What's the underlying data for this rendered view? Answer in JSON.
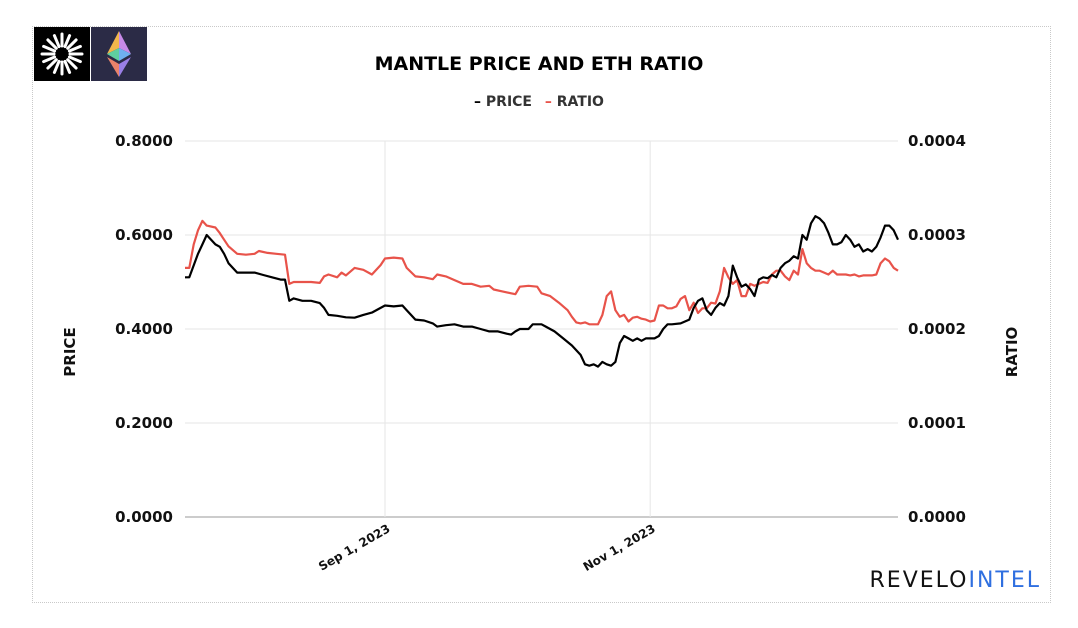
{
  "header": {
    "title": "MANTLE PRICE AND ETH RATIO",
    "logos": [
      "mantle-logo",
      "ethereum-logo"
    ]
  },
  "brand": {
    "part1": "REVELO",
    "part2": "INTEL",
    "color_part2": "#2f6fe0"
  },
  "colors": {
    "price": "#000000",
    "ratio": "#e8534a",
    "grid": "#e6e6e6"
  },
  "chart_data": {
    "type": "line",
    "title": "MANTLE PRICE AND ETH RATIO",
    "legend": {
      "position": "top-center",
      "entries": [
        "PRICE",
        "RATIO"
      ]
    },
    "ylabel_left": "PRICE",
    "ylabel_right": "RATIO",
    "ylim_left": [
      0,
      0.8
    ],
    "ylim_right": [
      0,
      0.0004
    ],
    "left_ticks": [
      "0.0000",
      "0.2000",
      "0.4000",
      "0.6000",
      "0.8000"
    ],
    "right_ticks": [
      "0.0000",
      "0.0001",
      "0.0002",
      "0.0003",
      "0.0004"
    ],
    "x_ticks": [
      "Sep 1, 2023",
      "Nov 1, 2023"
    ],
    "xlim": [
      "2023-07-17",
      "2023-12-28"
    ],
    "grid": true,
    "series": [
      {
        "name": "PRICE",
        "axis": "left",
        "points": [
          [
            "2023-07-17",
            0.51
          ],
          [
            "2023-07-18",
            0.51
          ],
          [
            "2023-07-20",
            0.56
          ],
          [
            "2023-07-21",
            0.58
          ],
          [
            "2023-07-22",
            0.6
          ],
          [
            "2023-07-24",
            0.58
          ],
          [
            "2023-07-25",
            0.575
          ],
          [
            "2023-07-26",
            0.56
          ],
          [
            "2023-07-27",
            0.54
          ],
          [
            "2023-07-28",
            0.53
          ],
          [
            "2023-07-29",
            0.52
          ],
          [
            "2023-07-31",
            0.52
          ],
          [
            "2023-08-02",
            0.52
          ],
          [
            "2023-08-04",
            0.515
          ],
          [
            "2023-08-06",
            0.51
          ],
          [
            "2023-08-08",
            0.505
          ],
          [
            "2023-08-09",
            0.505
          ],
          [
            "2023-08-10",
            0.46
          ],
          [
            "2023-08-11",
            0.465
          ],
          [
            "2023-08-13",
            0.46
          ],
          [
            "2023-08-15",
            0.46
          ],
          [
            "2023-08-17",
            0.455
          ],
          [
            "2023-08-18",
            0.445
          ],
          [
            "2023-08-19",
            0.43
          ],
          [
            "2023-08-21",
            0.428
          ],
          [
            "2023-08-23",
            0.425
          ],
          [
            "2023-08-25",
            0.424
          ],
          [
            "2023-08-27",
            0.43
          ],
          [
            "2023-08-29",
            0.435
          ],
          [
            "2023-08-31",
            0.445
          ],
          [
            "2023-09-01",
            0.45
          ],
          [
            "2023-09-03",
            0.448
          ],
          [
            "2023-09-05",
            0.45
          ],
          [
            "2023-09-06",
            0.44
          ],
          [
            "2023-09-08",
            0.42
          ],
          [
            "2023-09-10",
            0.418
          ],
          [
            "2023-09-12",
            0.412
          ],
          [
            "2023-09-13",
            0.405
          ],
          [
            "2023-09-15",
            0.408
          ],
          [
            "2023-09-17",
            0.41
          ],
          [
            "2023-09-19",
            0.405
          ],
          [
            "2023-09-21",
            0.405
          ],
          [
            "2023-09-23",
            0.4
          ],
          [
            "2023-09-25",
            0.395
          ],
          [
            "2023-09-27",
            0.395
          ],
          [
            "2023-09-29",
            0.39
          ],
          [
            "2023-09-30",
            0.388
          ],
          [
            "2023-10-01",
            0.395
          ],
          [
            "2023-10-02",
            0.4
          ],
          [
            "2023-10-04",
            0.4
          ],
          [
            "2023-10-05",
            0.41
          ],
          [
            "2023-10-07",
            0.41
          ],
          [
            "2023-10-08",
            0.405
          ],
          [
            "2023-10-10",
            0.395
          ],
          [
            "2023-10-12",
            0.38
          ],
          [
            "2023-10-14",
            0.365
          ],
          [
            "2023-10-16",
            0.345
          ],
          [
            "2023-10-17",
            0.325
          ],
          [
            "2023-10-18",
            0.322
          ],
          [
            "2023-10-19",
            0.325
          ],
          [
            "2023-10-20",
            0.32
          ],
          [
            "2023-10-21",
            0.33
          ],
          [
            "2023-10-22",
            0.325
          ],
          [
            "2023-10-23",
            0.322
          ],
          [
            "2023-10-24",
            0.33
          ],
          [
            "2023-10-25",
            0.37
          ],
          [
            "2023-10-26",
            0.385
          ],
          [
            "2023-10-27",
            0.38
          ],
          [
            "2023-10-28",
            0.375
          ],
          [
            "2023-10-29",
            0.38
          ],
          [
            "2023-10-30",
            0.375
          ],
          [
            "2023-10-31",
            0.38
          ],
          [
            "2023-11-02",
            0.38
          ],
          [
            "2023-11-03",
            0.385
          ],
          [
            "2023-11-04",
            0.4
          ],
          [
            "2023-11-05",
            0.41
          ],
          [
            "2023-11-06",
            0.41
          ],
          [
            "2023-11-08",
            0.412
          ],
          [
            "2023-11-10",
            0.42
          ],
          [
            "2023-11-11",
            0.445
          ],
          [
            "2023-11-12",
            0.46
          ],
          [
            "2023-11-13",
            0.465
          ],
          [
            "2023-11-14",
            0.44
          ],
          [
            "2023-11-15",
            0.43
          ],
          [
            "2023-11-16",
            0.445
          ],
          [
            "2023-11-17",
            0.455
          ],
          [
            "2023-11-18",
            0.45
          ],
          [
            "2023-11-19",
            0.47
          ],
          [
            "2023-11-20",
            0.535
          ],
          [
            "2023-11-21",
            0.51
          ],
          [
            "2023-11-22",
            0.49
          ],
          [
            "2023-11-23",
            0.495
          ],
          [
            "2023-11-24",
            0.485
          ],
          [
            "2023-11-25",
            0.47
          ],
          [
            "2023-11-26",
            0.505
          ],
          [
            "2023-11-27",
            0.51
          ],
          [
            "2023-11-28",
            0.508
          ],
          [
            "2023-11-29",
            0.515
          ],
          [
            "2023-11-30",
            0.51
          ],
          [
            "2023-12-01",
            0.53
          ],
          [
            "2023-12-02",
            0.54
          ],
          [
            "2023-12-03",
            0.545
          ],
          [
            "2023-12-04",
            0.555
          ],
          [
            "2023-12-05",
            0.55
          ],
          [
            "2023-12-06",
            0.6
          ],
          [
            "2023-12-07",
            0.59
          ],
          [
            "2023-12-08",
            0.625
          ],
          [
            "2023-12-09",
            0.64
          ],
          [
            "2023-12-10",
            0.635
          ],
          [
            "2023-12-11",
            0.625
          ],
          [
            "2023-12-12",
            0.605
          ],
          [
            "2023-12-13",
            0.58
          ],
          [
            "2023-12-14",
            0.58
          ],
          [
            "2023-12-15",
            0.585
          ],
          [
            "2023-12-16",
            0.6
          ],
          [
            "2023-12-17",
            0.59
          ],
          [
            "2023-12-18",
            0.575
          ],
          [
            "2023-12-19",
            0.58
          ],
          [
            "2023-12-20",
            0.565
          ],
          [
            "2023-12-21",
            0.57
          ],
          [
            "2023-12-22",
            0.565
          ],
          [
            "2023-12-23",
            0.575
          ],
          [
            "2023-12-24",
            0.595
          ],
          [
            "2023-12-25",
            0.62
          ],
          [
            "2023-12-26",
            0.62
          ],
          [
            "2023-12-27",
            0.61
          ],
          [
            "2023-12-28",
            0.59
          ]
        ]
      },
      {
        "name": "RATIO",
        "axis": "right",
        "points": [
          [
            "2023-07-17",
            0.000265
          ],
          [
            "2023-07-18",
            0.000265
          ],
          [
            "2023-07-19",
            0.00029
          ],
          [
            "2023-07-20",
            0.000305
          ],
          [
            "2023-07-21",
            0.000315
          ],
          [
            "2023-07-22",
            0.00031
          ],
          [
            "2023-07-24",
            0.000308
          ],
          [
            "2023-07-25",
            0.000302
          ],
          [
            "2023-07-26",
            0.000295
          ],
          [
            "2023-07-27",
            0.000288
          ],
          [
            "2023-07-29",
            0.00028
          ],
          [
            "2023-07-31",
            0.000279
          ],
          [
            "2023-08-02",
            0.00028
          ],
          [
            "2023-08-03",
            0.000283
          ],
          [
            "2023-08-05",
            0.000281
          ],
          [
            "2023-08-07",
            0.00028
          ],
          [
            "2023-08-09",
            0.000279
          ],
          [
            "2023-08-10",
            0.000248
          ],
          [
            "2023-08-11",
            0.00025
          ],
          [
            "2023-08-13",
            0.00025
          ],
          [
            "2023-08-15",
            0.00025
          ],
          [
            "2023-08-17",
            0.000249
          ],
          [
            "2023-08-18",
            0.000256
          ],
          [
            "2023-08-19",
            0.000258
          ],
          [
            "2023-08-21",
            0.000255
          ],
          [
            "2023-08-22",
            0.00026
          ],
          [
            "2023-08-23",
            0.000257
          ],
          [
            "2023-08-25",
            0.000265
          ],
          [
            "2023-08-27",
            0.000263
          ],
          [
            "2023-08-29",
            0.000258
          ],
          [
            "2023-08-31",
            0.000268
          ],
          [
            "2023-09-01",
            0.000275
          ],
          [
            "2023-09-03",
            0.000276
          ],
          [
            "2023-09-05",
            0.000275
          ],
          [
            "2023-09-06",
            0.000265
          ],
          [
            "2023-09-08",
            0.000256
          ],
          [
            "2023-09-10",
            0.000255
          ],
          [
            "2023-09-12",
            0.000253
          ],
          [
            "2023-09-13",
            0.000258
          ],
          [
            "2023-09-15",
            0.000256
          ],
          [
            "2023-09-17",
            0.000252
          ],
          [
            "2023-09-19",
            0.000248
          ],
          [
            "2023-09-21",
            0.000248
          ],
          [
            "2023-09-23",
            0.000245
          ],
          [
            "2023-09-25",
            0.000246
          ],
          [
            "2023-09-26",
            0.000242
          ],
          [
            "2023-09-28",
            0.00024
          ],
          [
            "2023-09-30",
            0.000238
          ],
          [
            "2023-10-01",
            0.000237
          ],
          [
            "2023-10-02",
            0.000245
          ],
          [
            "2023-10-04",
            0.000246
          ],
          [
            "2023-10-06",
            0.000245
          ],
          [
            "2023-10-07",
            0.000238
          ],
          [
            "2023-10-09",
            0.000235
          ],
          [
            "2023-10-11",
            0.000228
          ],
          [
            "2023-10-13",
            0.00022
          ],
          [
            "2023-10-14",
            0.000213
          ],
          [
            "2023-10-15",
            0.000207
          ],
          [
            "2023-10-16",
            0.000206
          ],
          [
            "2023-10-17",
            0.000207
          ],
          [
            "2023-10-18",
            0.000205
          ],
          [
            "2023-10-20",
            0.000205
          ],
          [
            "2023-10-21",
            0.000215
          ],
          [
            "2023-10-22",
            0.000235
          ],
          [
            "2023-10-23",
            0.00024
          ],
          [
            "2023-10-24",
            0.00022
          ],
          [
            "2023-10-25",
            0.000213
          ],
          [
            "2023-10-26",
            0.000215
          ],
          [
            "2023-10-27",
            0.000208
          ],
          [
            "2023-10-28",
            0.000212
          ],
          [
            "2023-10-29",
            0.000213
          ],
          [
            "2023-10-30",
            0.000211
          ],
          [
            "2023-10-31",
            0.00021
          ],
          [
            "2023-11-01",
            0.000208
          ],
          [
            "2023-11-02",
            0.000209
          ],
          [
            "2023-11-03",
            0.000225
          ],
          [
            "2023-11-04",
            0.000225
          ],
          [
            "2023-11-05",
            0.000222
          ],
          [
            "2023-11-06",
            0.000222
          ],
          [
            "2023-11-07",
            0.000224
          ],
          [
            "2023-11-08",
            0.000232
          ],
          [
            "2023-11-09",
            0.000235
          ],
          [
            "2023-11-10",
            0.00022
          ],
          [
            "2023-11-11",
            0.000228
          ],
          [
            "2023-11-12",
            0.000217
          ],
          [
            "2023-11-13",
            0.000222
          ],
          [
            "2023-11-14",
            0.000222
          ],
          [
            "2023-11-15",
            0.000228
          ],
          [
            "2023-11-16",
            0.000227
          ],
          [
            "2023-11-17",
            0.00024
          ],
          [
            "2023-11-18",
            0.000265
          ],
          [
            "2023-11-19",
            0.000255
          ],
          [
            "2023-11-20",
            0.000248
          ],
          [
            "2023-11-21",
            0.000252
          ],
          [
            "2023-11-22",
            0.000235
          ],
          [
            "2023-11-23",
            0.000235
          ],
          [
            "2023-11-24",
            0.000248
          ],
          [
            "2023-11-25",
            0.000246
          ],
          [
            "2023-11-26",
            0.000248
          ],
          [
            "2023-11-27",
            0.00025
          ],
          [
            "2023-11-28",
            0.000249
          ],
          [
            "2023-11-29",
            0.000258
          ],
          [
            "2023-11-30",
            0.000262
          ],
          [
            "2023-12-01",
            0.000262
          ],
          [
            "2023-12-02",
            0.000256
          ],
          [
            "2023-12-03",
            0.000252
          ],
          [
            "2023-12-04",
            0.000262
          ],
          [
            "2023-12-05",
            0.000258
          ],
          [
            "2023-12-06",
            0.000285
          ],
          [
            "2023-12-07",
            0.00027
          ],
          [
            "2023-12-08",
            0.000265
          ],
          [
            "2023-12-09",
            0.000262
          ],
          [
            "2023-12-10",
            0.000262
          ],
          [
            "2023-12-11",
            0.00026
          ],
          [
            "2023-12-12",
            0.000258
          ],
          [
            "2023-12-13",
            0.000262
          ],
          [
            "2023-12-14",
            0.000258
          ],
          [
            "2023-12-15",
            0.000258
          ],
          [
            "2023-12-16",
            0.000258
          ],
          [
            "2023-12-17",
            0.000257
          ],
          [
            "2023-12-18",
            0.000258
          ],
          [
            "2023-12-19",
            0.000256
          ],
          [
            "2023-12-20",
            0.000257
          ],
          [
            "2023-12-21",
            0.000257
          ],
          [
            "2023-12-22",
            0.000257
          ],
          [
            "2023-12-23",
            0.000258
          ],
          [
            "2023-12-24",
            0.00027
          ],
          [
            "2023-12-25",
            0.000275
          ],
          [
            "2023-12-26",
            0.000272
          ],
          [
            "2023-12-27",
            0.000265
          ],
          [
            "2023-12-28",
            0.000262
          ]
        ]
      }
    ]
  }
}
